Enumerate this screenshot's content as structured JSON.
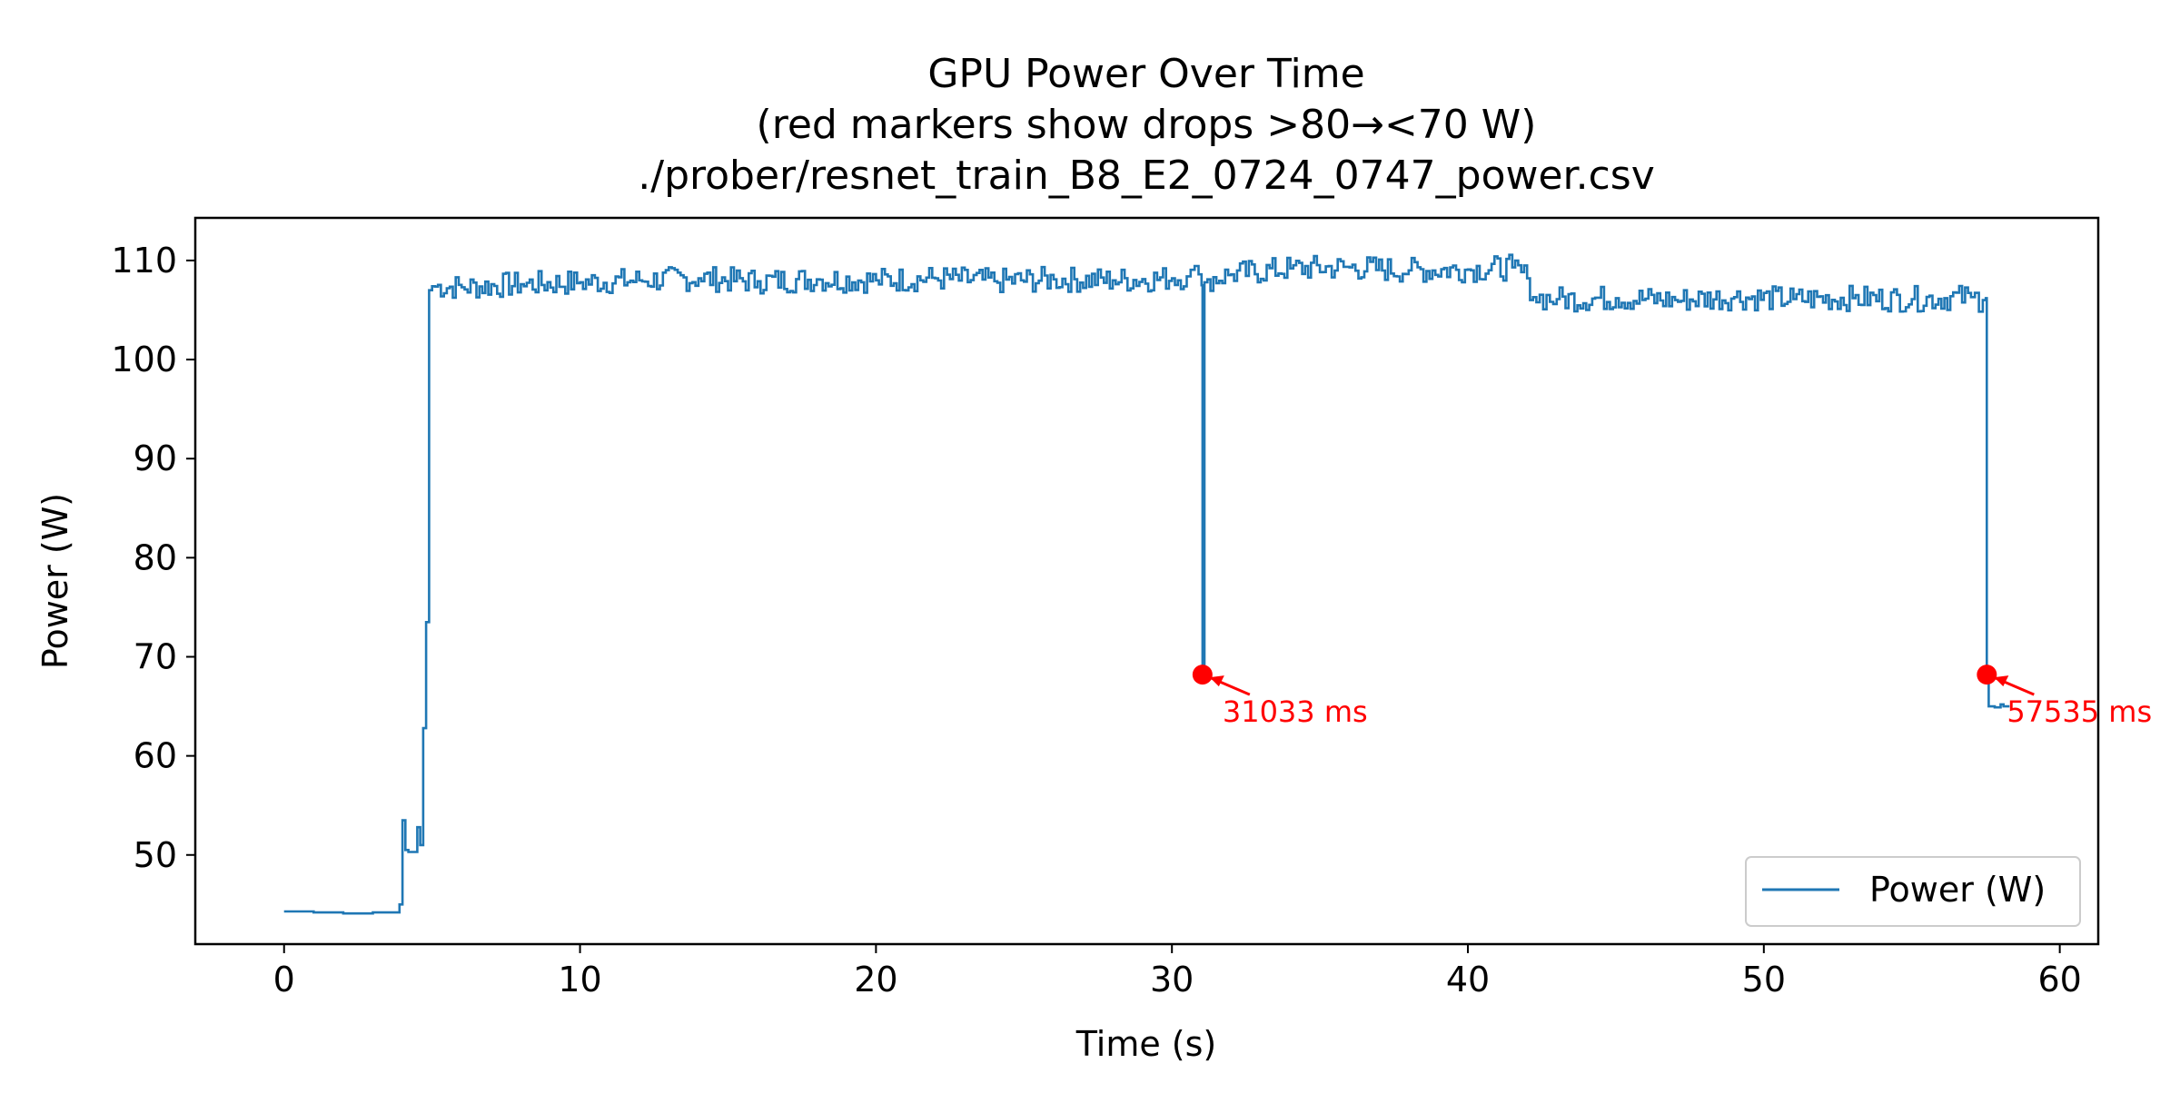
{
  "chart_data": {
    "type": "line",
    "title_lines": [
      "GPU Power Over Time",
      "(red markers show drops >80→<70 W)",
      "./prober/resnet_train_B8_E2_0724_0747_power.csv"
    ],
    "xlabel": "Time (s)",
    "ylabel": "Power (W)",
    "xlim": [
      -3,
      61.3
    ],
    "ylim": [
      41.0,
      114.3
    ],
    "xticks": [
      0,
      10,
      20,
      30,
      40,
      50,
      60
    ],
    "yticks": [
      50,
      60,
      70,
      80,
      90,
      100,
      110
    ],
    "grid": false,
    "legend": {
      "position": "lower-right",
      "entries": [
        "Power (W)"
      ]
    },
    "series": [
      {
        "name": "Power (W)",
        "color": "#1f77b4",
        "x": [
          0.0,
          1.0,
          2.0,
          3.0,
          3.9,
          4.0,
          4.1,
          4.2,
          4.5,
          4.6,
          4.7,
          4.8,
          4.9,
          5.0,
          6.0,
          8.0,
          10.0,
          12.0,
          14.0,
          16.0,
          18.0,
          20.0,
          22.0,
          24.0,
          26.0,
          28.0,
          30.0,
          30.5,
          30.9,
          31.0,
          31.033,
          31.1,
          31.2,
          32.0,
          34.0,
          36.0,
          38.0,
          40.0,
          41.5,
          42.0,
          42.2,
          43.0,
          45.0,
          47.0,
          49.0,
          51.0,
          53.0,
          55.0,
          57.0,
          57.4,
          57.5,
          57.535,
          57.6,
          57.8,
          58.0,
          58.1,
          58.3
        ],
        "y": [
          44.3,
          44.2,
          44.1,
          44.2,
          45.0,
          53.5,
          50.5,
          50.3,
          52.8,
          51.0,
          62.8,
          73.5,
          107.0,
          107.4,
          107.3,
          107.6,
          107.8,
          108.0,
          108.2,
          107.9,
          108.1,
          108.0,
          108.2,
          107.9,
          108.1,
          108.0,
          108.2,
          108.4,
          108.6,
          107.5,
          68.2,
          107.8,
          108.1,
          108.6,
          109.2,
          109.3,
          109.0,
          109.1,
          109.3,
          108.2,
          106.3,
          106.1,
          106.2,
          106.0,
          106.3,
          106.1,
          106.2,
          106.1,
          106.3,
          106.0,
          106.2,
          68.2,
          65.0,
          64.9,
          65.2,
          65.0,
          65.0
        ]
      }
    ],
    "markers": [
      {
        "x": 31.033,
        "y": 68.2,
        "label": "31033 ms",
        "color": "#ff0000"
      },
      {
        "x": 57.535,
        "y": 68.2,
        "label": "57535 ms",
        "color": "#ff0000"
      }
    ]
  }
}
